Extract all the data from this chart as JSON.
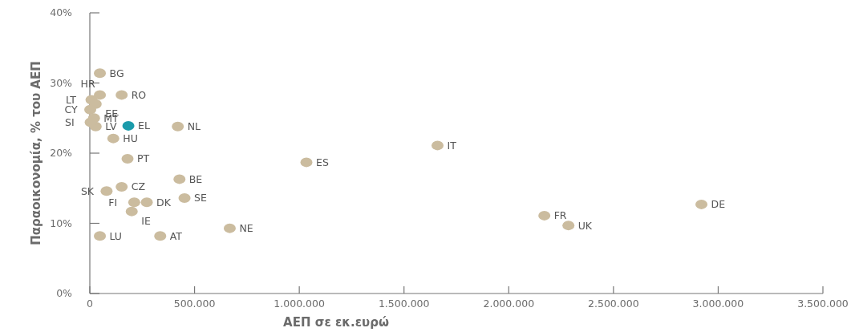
{
  "chart_data": {
    "type": "scatter",
    "xlabel": "ΑΕΠ σε εκ.ευρώ",
    "ylabel": "Παραοικονομία, % του ΑΕΠ",
    "x": [
      48000,
      48000,
      152000,
      8000,
      28000,
      2000,
      28000,
      20000,
      4000,
      112000,
      184000,
      420000,
      180000,
      152000,
      80000,
      428000,
      212000,
      272000,
      452000,
      200000,
      48000,
      336000,
      668000,
      1034000,
      1660000,
      2170000,
      2285000,
      2920000
    ],
    "values": [
      31.4,
      28.3,
      28.3,
      27.6,
      27.0,
      26.2,
      23.8,
      25.0,
      24.4,
      22.1,
      23.9,
      23.8,
      19.2,
      15.2,
      14.6,
      16.3,
      13.0,
      13.0,
      13.6,
      11.7,
      8.2,
      8.2,
      9.3,
      18.7,
      21.1,
      11.1,
      9.7,
      12.7
    ],
    "colors": [
      "#cbbc9f",
      "#cbbc9f",
      "#cbbc9f",
      "#cbbc9f",
      "#cbbc9f",
      "#cbbc9f",
      "#cbbc9f",
      "#cbbc9f",
      "#cbbc9f",
      "#cbbc9f",
      "#1b9bab",
      "#cbbc9f",
      "#cbbc9f",
      "#cbbc9f",
      "#cbbc9f",
      "#cbbc9f",
      "#cbbc9f",
      "#cbbc9f",
      "#cbbc9f",
      "#cbbc9f",
      "#cbbc9f",
      "#cbbc9f",
      "#cbbc9f",
      "#cbbc9f",
      "#cbbc9f",
      "#cbbc9f",
      "#cbbc9f",
      "#cbbc9f"
    ],
    "annotations": [
      {
        "text": "BG",
        "x": 48000,
        "y": 31.4
      },
      {
        "text": "HR",
        "x": 48000,
        "y": 28.3
      },
      {
        "text": "RO",
        "x": 152000,
        "y": 28.3
      },
      {
        "text": "LT",
        "x": 8000,
        "y": 27.6
      },
      {
        "text": "EE",
        "x": 28000,
        "y": 27.0
      },
      {
        "text": "CY",
        "x": 2000,
        "y": 26.2
      },
      {
        "text": "LV",
        "x": 28000,
        "y": 23.8
      },
      {
        "text": "MT",
        "x": 20000,
        "y": 25.0
      },
      {
        "text": "SI",
        "x": 4000,
        "y": 24.4
      },
      {
        "text": "HU",
        "x": 112000,
        "y": 22.1
      },
      {
        "text": "EL",
        "x": 184000,
        "y": 23.9
      },
      {
        "text": "NL",
        "x": 420000,
        "y": 23.8
      },
      {
        "text": "PT",
        "x": 180000,
        "y": 19.2
      },
      {
        "text": "CZ",
        "x": 152000,
        "y": 15.2
      },
      {
        "text": "SK",
        "x": 80000,
        "y": 14.6
      },
      {
        "text": "BE",
        "x": 428000,
        "y": 16.3
      },
      {
        "text": "FI",
        "x": 212000,
        "y": 13.0
      },
      {
        "text": "DK",
        "x": 272000,
        "y": 13.0
      },
      {
        "text": "SE",
        "x": 452000,
        "y": 13.6
      },
      {
        "text": "IE",
        "x": 200000,
        "y": 11.7
      },
      {
        "text": "LU",
        "x": 48000,
        "y": 8.2
      },
      {
        "text": "AT",
        "x": 336000,
        "y": 8.2
      },
      {
        "text": "NE",
        "x": 668000,
        "y": 9.3
      },
      {
        "text": "ES",
        "x": 1034000,
        "y": 18.7
      },
      {
        "text": "IT",
        "x": 1660000,
        "y": 21.1
      },
      {
        "text": "FR",
        "x": 2170000,
        "y": 11.1
      },
      {
        "text": "UK",
        "x": 2285000,
        "y": 9.7
      },
      {
        "text": "DE",
        "x": 2920000,
        "y": 12.7
      }
    ],
    "xlim": [
      0,
      3500000
    ],
    "xticks": [
      {
        "value": 0,
        "label": "0"
      },
      {
        "value": 500000,
        "label": "500.000"
      },
      {
        "value": 1000000,
        "label": "1.000.000"
      },
      {
        "value": 1500000,
        "label": "1.500.000"
      },
      {
        "value": 2000000,
        "label": "2.000.000"
      },
      {
        "value": 2500000,
        "label": "2.500.000"
      },
      {
        "value": 3000000,
        "label": "3.000.000"
      },
      {
        "value": 3500000,
        "label": "3.500.000"
      }
    ],
    "ylim": [
      0,
      40
    ],
    "yticks": [
      {
        "value": 0,
        "label": "0%"
      },
      {
        "value": 10,
        "label": "10%"
      },
      {
        "value": 20,
        "label": "20%"
      },
      {
        "value": 30,
        "label": "30%"
      },
      {
        "value": 40,
        "label": "40%"
      }
    ],
    "marker": "circle"
  }
}
